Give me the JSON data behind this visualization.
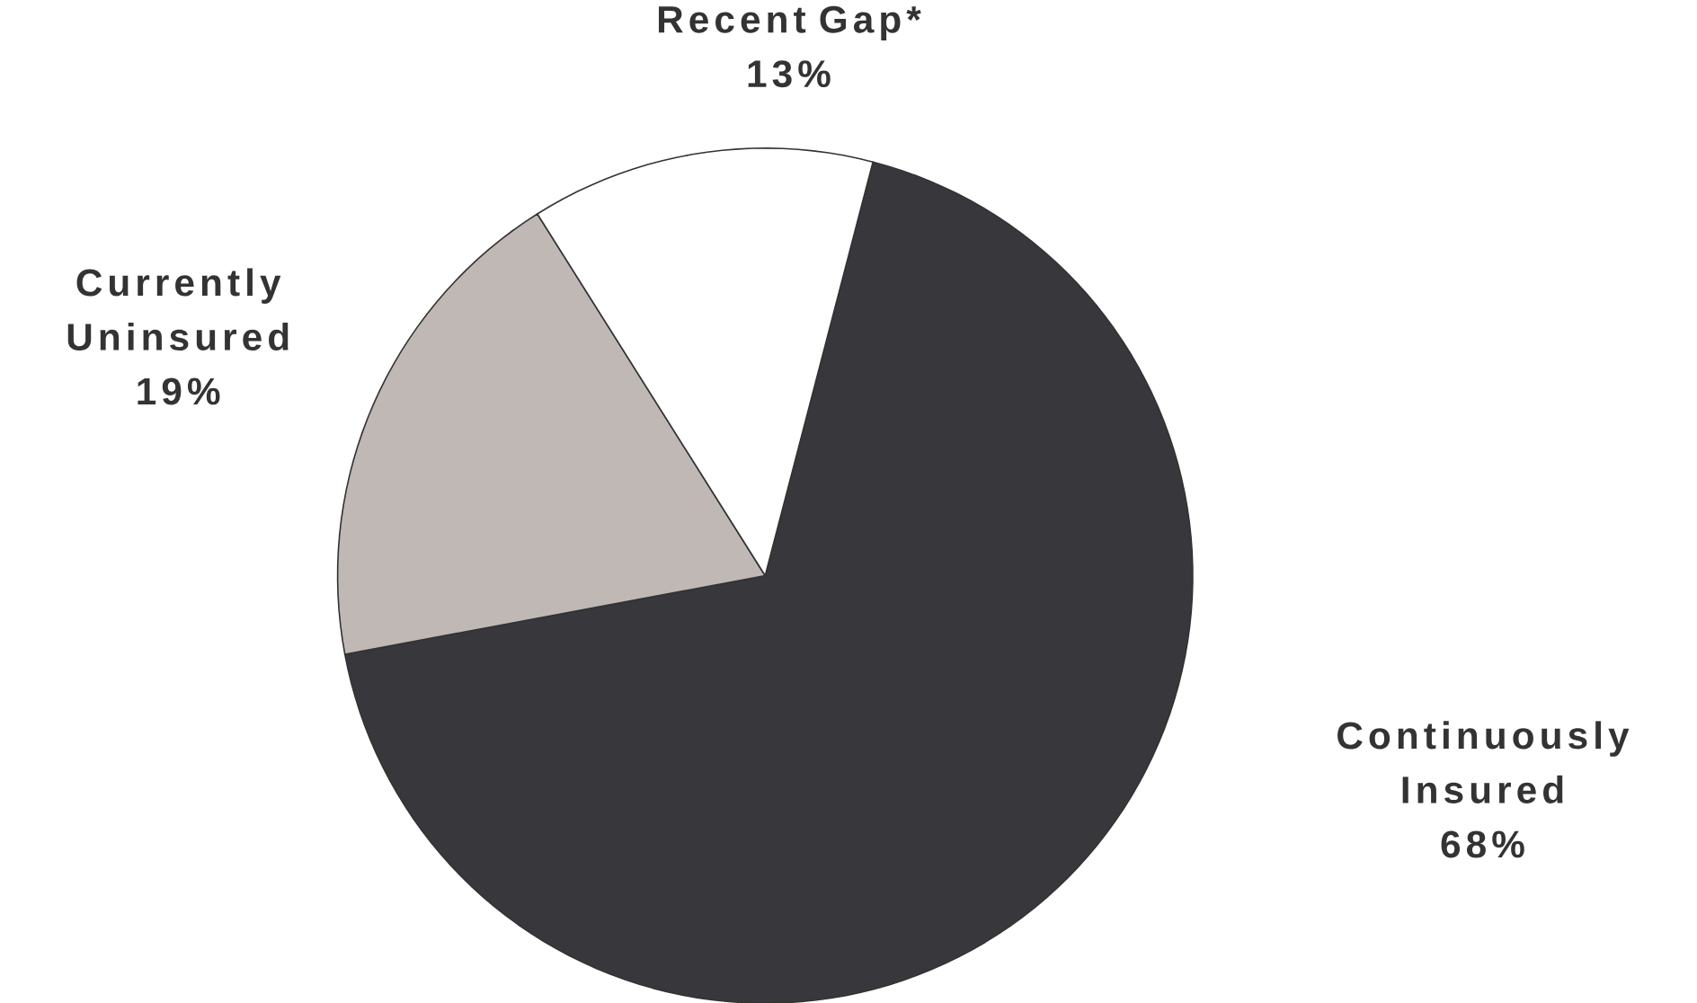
{
  "chart_data": {
    "type": "pie",
    "categories": [
      "Continuously Insured",
      "Currently Uninsured",
      "Recent Gap*"
    ],
    "values": [
      68,
      19,
      13
    ],
    "value_labels": [
      "68%",
      "19%",
      "13%"
    ],
    "colors": [
      "#38373b",
      "#c0b8b5",
      "#ffffff"
    ]
  }
}
